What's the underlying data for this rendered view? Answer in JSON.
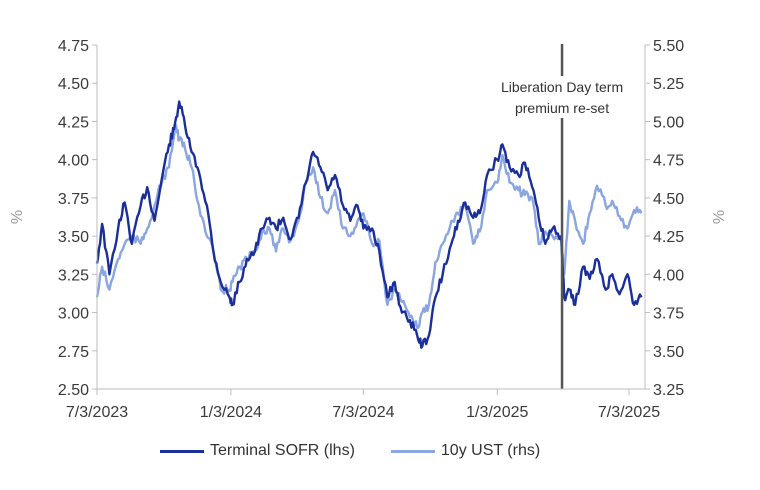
{
  "chart_data": {
    "type": "line",
    "title": "",
    "x_ticks": [
      "7/3/2023",
      "1/3/2024",
      "7/3/2024",
      "1/3/2025",
      "7/3/2025"
    ],
    "left_axis": {
      "label": "%",
      "min": 2.5,
      "max": 4.75,
      "step": 0.25,
      "ticks": [
        "2.50",
        "2.75",
        "3.00",
        "3.25",
        "3.50",
        "3.75",
        "4.00",
        "4.25",
        "4.50",
        "4.75"
      ]
    },
    "right_axis": {
      "label": "%",
      "min": 3.25,
      "max": 5.5,
      "step": 0.25,
      "ticks": [
        "3.25",
        "3.50",
        "3.75",
        "4.00",
        "4.25",
        "4.50",
        "4.75",
        "5.00",
        "5.25",
        "5.50"
      ]
    },
    "annotation": {
      "date": "2025-04-02",
      "lines": [
        "Liberation Day term",
        "premium re-set"
      ]
    },
    "grid": false,
    "legend_position": "bottom",
    "series": [
      {
        "name": "Terminal SOFR (lhs)",
        "axis": "left",
        "color": "#1a2f9a",
        "points": [
          [
            "2023-07-03",
            3.32
          ],
          [
            "2023-07-10",
            3.58
          ],
          [
            "2023-07-20",
            3.25
          ],
          [
            "2023-08-01",
            3.55
          ],
          [
            "2023-08-10",
            3.72
          ],
          [
            "2023-08-20",
            3.45
          ],
          [
            "2023-09-01",
            3.7
          ],
          [
            "2023-09-10",
            3.82
          ],
          [
            "2023-09-20",
            3.6
          ],
          [
            "2023-10-01",
            3.9
          ],
          [
            "2023-10-10",
            4.1
          ],
          [
            "2023-10-17",
            4.2
          ],
          [
            "2023-10-24",
            4.38
          ],
          [
            "2023-11-01",
            4.22
          ],
          [
            "2023-11-10",
            4.05
          ],
          [
            "2023-11-20",
            3.92
          ],
          [
            "2023-12-01",
            3.7
          ],
          [
            "2023-12-10",
            3.4
          ],
          [
            "2023-12-20",
            3.2
          ],
          [
            "2024-01-01",
            3.1
          ],
          [
            "2024-01-05",
            3.05
          ],
          [
            "2024-01-15",
            3.2
          ],
          [
            "2024-01-25",
            3.35
          ],
          [
            "2024-02-05",
            3.4
          ],
          [
            "2024-02-15",
            3.55
          ],
          [
            "2024-02-25",
            3.62
          ],
          [
            "2024-03-05",
            3.55
          ],
          [
            "2024-03-15",
            3.62
          ],
          [
            "2024-03-25",
            3.48
          ],
          [
            "2024-04-05",
            3.62
          ],
          [
            "2024-04-15",
            3.85
          ],
          [
            "2024-04-25",
            4.05
          ],
          [
            "2024-05-05",
            3.95
          ],
          [
            "2024-05-15",
            3.8
          ],
          [
            "2024-05-25",
            3.9
          ],
          [
            "2024-06-05",
            3.7
          ],
          [
            "2024-06-15",
            3.6
          ],
          [
            "2024-06-25",
            3.7
          ],
          [
            "2024-07-03",
            3.55
          ],
          [
            "2024-07-15",
            3.55
          ],
          [
            "2024-07-25",
            3.4
          ],
          [
            "2024-08-05",
            3.1
          ],
          [
            "2024-08-15",
            3.2
          ],
          [
            "2024-08-25",
            3.0
          ],
          [
            "2024-09-05",
            2.95
          ],
          [
            "2024-09-15",
            2.85
          ],
          [
            "2024-09-22",
            2.78
          ],
          [
            "2024-10-01",
            2.85
          ],
          [
            "2024-10-10",
            3.1
          ],
          [
            "2024-10-20",
            3.25
          ],
          [
            "2024-11-01",
            3.45
          ],
          [
            "2024-11-10",
            3.6
          ],
          [
            "2024-11-20",
            3.72
          ],
          [
            "2024-12-01",
            3.62
          ],
          [
            "2024-12-10",
            3.65
          ],
          [
            "2024-12-20",
            3.9
          ],
          [
            "2025-01-03",
            4.0
          ],
          [
            "2025-01-10",
            4.1
          ],
          [
            "2025-01-20",
            3.95
          ],
          [
            "2025-02-01",
            3.9
          ],
          [
            "2025-02-10",
            3.98
          ],
          [
            "2025-02-20",
            3.82
          ],
          [
            "2025-03-01",
            3.62
          ],
          [
            "2025-03-10",
            3.45
          ],
          [
            "2025-03-20",
            3.55
          ],
          [
            "2025-04-01",
            3.5
          ],
          [
            "2025-04-05",
            3.1
          ],
          [
            "2025-04-12",
            3.15
          ],
          [
            "2025-04-20",
            3.05
          ],
          [
            "2025-05-01",
            3.3
          ],
          [
            "2025-05-10",
            3.22
          ],
          [
            "2025-05-20",
            3.35
          ],
          [
            "2025-06-01",
            3.15
          ],
          [
            "2025-06-10",
            3.25
          ],
          [
            "2025-06-20",
            3.12
          ],
          [
            "2025-07-01",
            3.25
          ],
          [
            "2025-07-10",
            3.05
          ],
          [
            "2025-07-20",
            3.1
          ]
        ]
      },
      {
        "name": "10y UST (rhs)",
        "axis": "right",
        "color": "#8aa5e0",
        "points": [
          [
            "2023-07-03",
            3.85
          ],
          [
            "2023-07-10",
            4.05
          ],
          [
            "2023-07-20",
            3.9
          ],
          [
            "2023-08-01",
            4.1
          ],
          [
            "2023-08-10",
            4.2
          ],
          [
            "2023-08-20",
            4.25
          ],
          [
            "2023-09-01",
            4.2
          ],
          [
            "2023-09-10",
            4.3
          ],
          [
            "2023-09-20",
            4.45
          ],
          [
            "2023-10-01",
            4.62
          ],
          [
            "2023-10-10",
            4.7
          ],
          [
            "2023-10-19",
            4.98
          ],
          [
            "2023-10-24",
            4.88
          ],
          [
            "2023-11-01",
            4.82
          ],
          [
            "2023-11-10",
            4.7
          ],
          [
            "2023-11-20",
            4.45
          ],
          [
            "2023-12-01",
            4.25
          ],
          [
            "2023-12-10",
            4.15
          ],
          [
            "2023-12-20",
            3.9
          ],
          [
            "2024-01-01",
            3.9
          ],
          [
            "2024-01-05",
            3.95
          ],
          [
            "2024-01-15",
            4.05
          ],
          [
            "2024-01-25",
            4.1
          ],
          [
            "2024-02-05",
            4.15
          ],
          [
            "2024-02-15",
            4.28
          ],
          [
            "2024-02-25",
            4.3
          ],
          [
            "2024-03-05",
            4.15
          ],
          [
            "2024-03-15",
            4.3
          ],
          [
            "2024-03-25",
            4.22
          ],
          [
            "2024-04-05",
            4.35
          ],
          [
            "2024-04-15",
            4.6
          ],
          [
            "2024-04-25",
            4.7
          ],
          [
            "2024-05-05",
            4.5
          ],
          [
            "2024-05-15",
            4.4
          ],
          [
            "2024-05-25",
            4.55
          ],
          [
            "2024-06-05",
            4.3
          ],
          [
            "2024-06-15",
            4.25
          ],
          [
            "2024-06-25",
            4.35
          ],
          [
            "2024-07-03",
            4.4
          ],
          [
            "2024-07-15",
            4.2
          ],
          [
            "2024-07-25",
            4.22
          ],
          [
            "2024-08-05",
            3.8
          ],
          [
            "2024-08-15",
            3.9
          ],
          [
            "2024-08-25",
            3.82
          ],
          [
            "2024-09-05",
            3.72
          ],
          [
            "2024-09-15",
            3.65
          ],
          [
            "2024-09-22",
            3.75
          ],
          [
            "2024-10-01",
            3.8
          ],
          [
            "2024-10-10",
            4.08
          ],
          [
            "2024-10-20",
            4.2
          ],
          [
            "2024-11-01",
            4.35
          ],
          [
            "2024-11-10",
            4.4
          ],
          [
            "2024-11-20",
            4.45
          ],
          [
            "2024-12-01",
            4.2
          ],
          [
            "2024-12-10",
            4.28
          ],
          [
            "2024-12-20",
            4.55
          ],
          [
            "2025-01-03",
            4.6
          ],
          [
            "2025-01-10",
            4.78
          ],
          [
            "2025-01-20",
            4.6
          ],
          [
            "2025-02-01",
            4.55
          ],
          [
            "2025-02-10",
            4.52
          ],
          [
            "2025-02-20",
            4.5
          ],
          [
            "2025-03-01",
            4.2
          ],
          [
            "2025-03-10",
            4.28
          ],
          [
            "2025-03-20",
            4.25
          ],
          [
            "2025-04-01",
            4.22
          ],
          [
            "2025-04-05",
            4.0
          ],
          [
            "2025-04-12",
            4.48
          ],
          [
            "2025-04-20",
            4.35
          ],
          [
            "2025-05-01",
            4.2
          ],
          [
            "2025-05-10",
            4.4
          ],
          [
            "2025-05-20",
            4.58
          ],
          [
            "2025-06-01",
            4.45
          ],
          [
            "2025-06-10",
            4.48
          ],
          [
            "2025-06-20",
            4.38
          ],
          [
            "2025-07-01",
            4.3
          ],
          [
            "2025-07-10",
            4.42
          ],
          [
            "2025-07-20",
            4.4
          ]
        ]
      }
    ]
  }
}
